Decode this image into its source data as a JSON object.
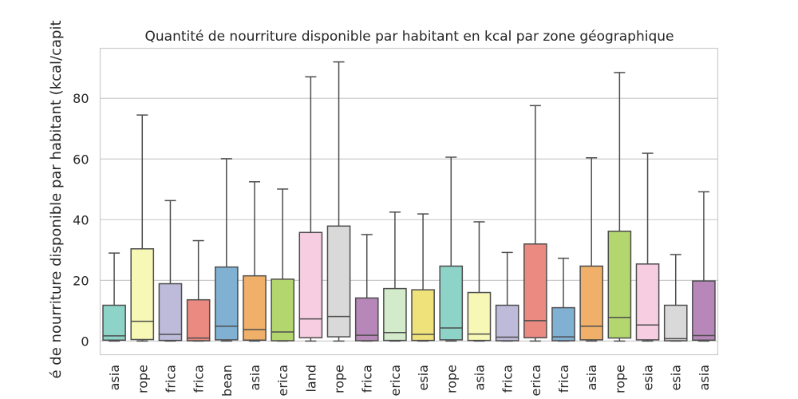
{
  "chart_data": {
    "type": "box",
    "title": "Quantité de nourriture disponible par habitant en kcal par zone géographique",
    "ylabel": "é de nourriture disponible par habitant (kcal/capit",
    "xlabel": "",
    "ylim": [
      -4.5,
      96.5
    ],
    "yticks": [
      0,
      20,
      40,
      60,
      80
    ],
    "grid": true,
    "categories": [
      "asia",
      "rope",
      "frica",
      "frica",
      "bean",
      "asia",
      "erica",
      "land",
      "rope",
      "frica",
      "erica",
      "esia",
      "rope",
      "asia",
      "frica",
      "erica",
      "frica",
      "asia",
      "rope",
      "esia",
      "esia",
      "asia"
    ],
    "boxes": [
      {
        "min": 0,
        "q1": 0.3,
        "median": 1.7,
        "q3": 11.8,
        "max": 29.0,
        "color": "#8dd3c7"
      },
      {
        "min": 0,
        "q1": 0.5,
        "median": 6.5,
        "q3": 30.4,
        "max": 74.5,
        "color": "#f7f7b6"
      },
      {
        "min": 0,
        "q1": 0.2,
        "median": 2.2,
        "q3": 18.9,
        "max": 46.3,
        "color": "#bebada"
      },
      {
        "min": 0,
        "q1": 0.1,
        "median": 1.0,
        "q3": 13.6,
        "max": 33.1,
        "color": "#eb8a80"
      },
      {
        "min": 0,
        "q1": 0.4,
        "median": 4.9,
        "q3": 24.4,
        "max": 60.1,
        "color": "#80b1d3"
      },
      {
        "min": 0,
        "q1": 0.3,
        "median": 3.8,
        "q3": 21.5,
        "max": 52.5,
        "color": "#f0b06a"
      },
      {
        "min": 0,
        "q1": 0.1,
        "median": 3.0,
        "q3": 20.4,
        "max": 50.1,
        "color": "#b3d66e"
      },
      {
        "min": 0,
        "q1": 1.1,
        "median": 7.3,
        "q3": 35.8,
        "max": 87.1,
        "color": "#f7cde1"
      },
      {
        "min": 0,
        "q1": 1.4,
        "median": 8.1,
        "q3": 37.9,
        "max": 92.0,
        "color": "#d9d9d9"
      },
      {
        "min": 0,
        "q1": 0.1,
        "median": 1.9,
        "q3": 14.2,
        "max": 35.1,
        "color": "#b687b8"
      },
      {
        "min": 0,
        "q1": 0.2,
        "median": 2.8,
        "q3": 17.3,
        "max": 42.5,
        "color": "#d4ebcb"
      },
      {
        "min": 0,
        "q1": 0.2,
        "median": 2.2,
        "q3": 16.9,
        "max": 41.9,
        "color": "#efe27a"
      },
      {
        "min": 0,
        "q1": 0.4,
        "median": 4.3,
        "q3": 24.7,
        "max": 60.6,
        "color": "#8dd3c7"
      },
      {
        "min": 0,
        "q1": 0.2,
        "median": 2.3,
        "q3": 16.0,
        "max": 39.3,
        "color": "#f7f7b6"
      },
      {
        "min": 0,
        "q1": 0.1,
        "median": 1.3,
        "q3": 11.8,
        "max": 29.2,
        "color": "#bebada"
      },
      {
        "min": 0,
        "q1": 1.1,
        "median": 6.7,
        "q3": 32.0,
        "max": 77.6,
        "color": "#eb8a80"
      },
      {
        "min": 0,
        "q1": 0.1,
        "median": 1.4,
        "q3": 11.0,
        "max": 27.3,
        "color": "#80b1d3"
      },
      {
        "min": 0,
        "q1": 0.4,
        "median": 4.9,
        "q3": 24.7,
        "max": 60.4,
        "color": "#f0b06a"
      },
      {
        "min": 0,
        "q1": 1.0,
        "median": 7.8,
        "q3": 36.2,
        "max": 88.5,
        "color": "#b3d66e"
      },
      {
        "min": 0,
        "q1": 0.4,
        "median": 5.3,
        "q3": 25.4,
        "max": 61.9,
        "color": "#f7cde1"
      },
      {
        "min": 0,
        "q1": 0.1,
        "median": 0.8,
        "q3": 11.8,
        "max": 28.5,
        "color": "#d9d9d9"
      },
      {
        "min": 0,
        "q1": 0.3,
        "median": 1.8,
        "q3": 19.8,
        "max": 49.2,
        "color": "#b687b8"
      }
    ]
  }
}
